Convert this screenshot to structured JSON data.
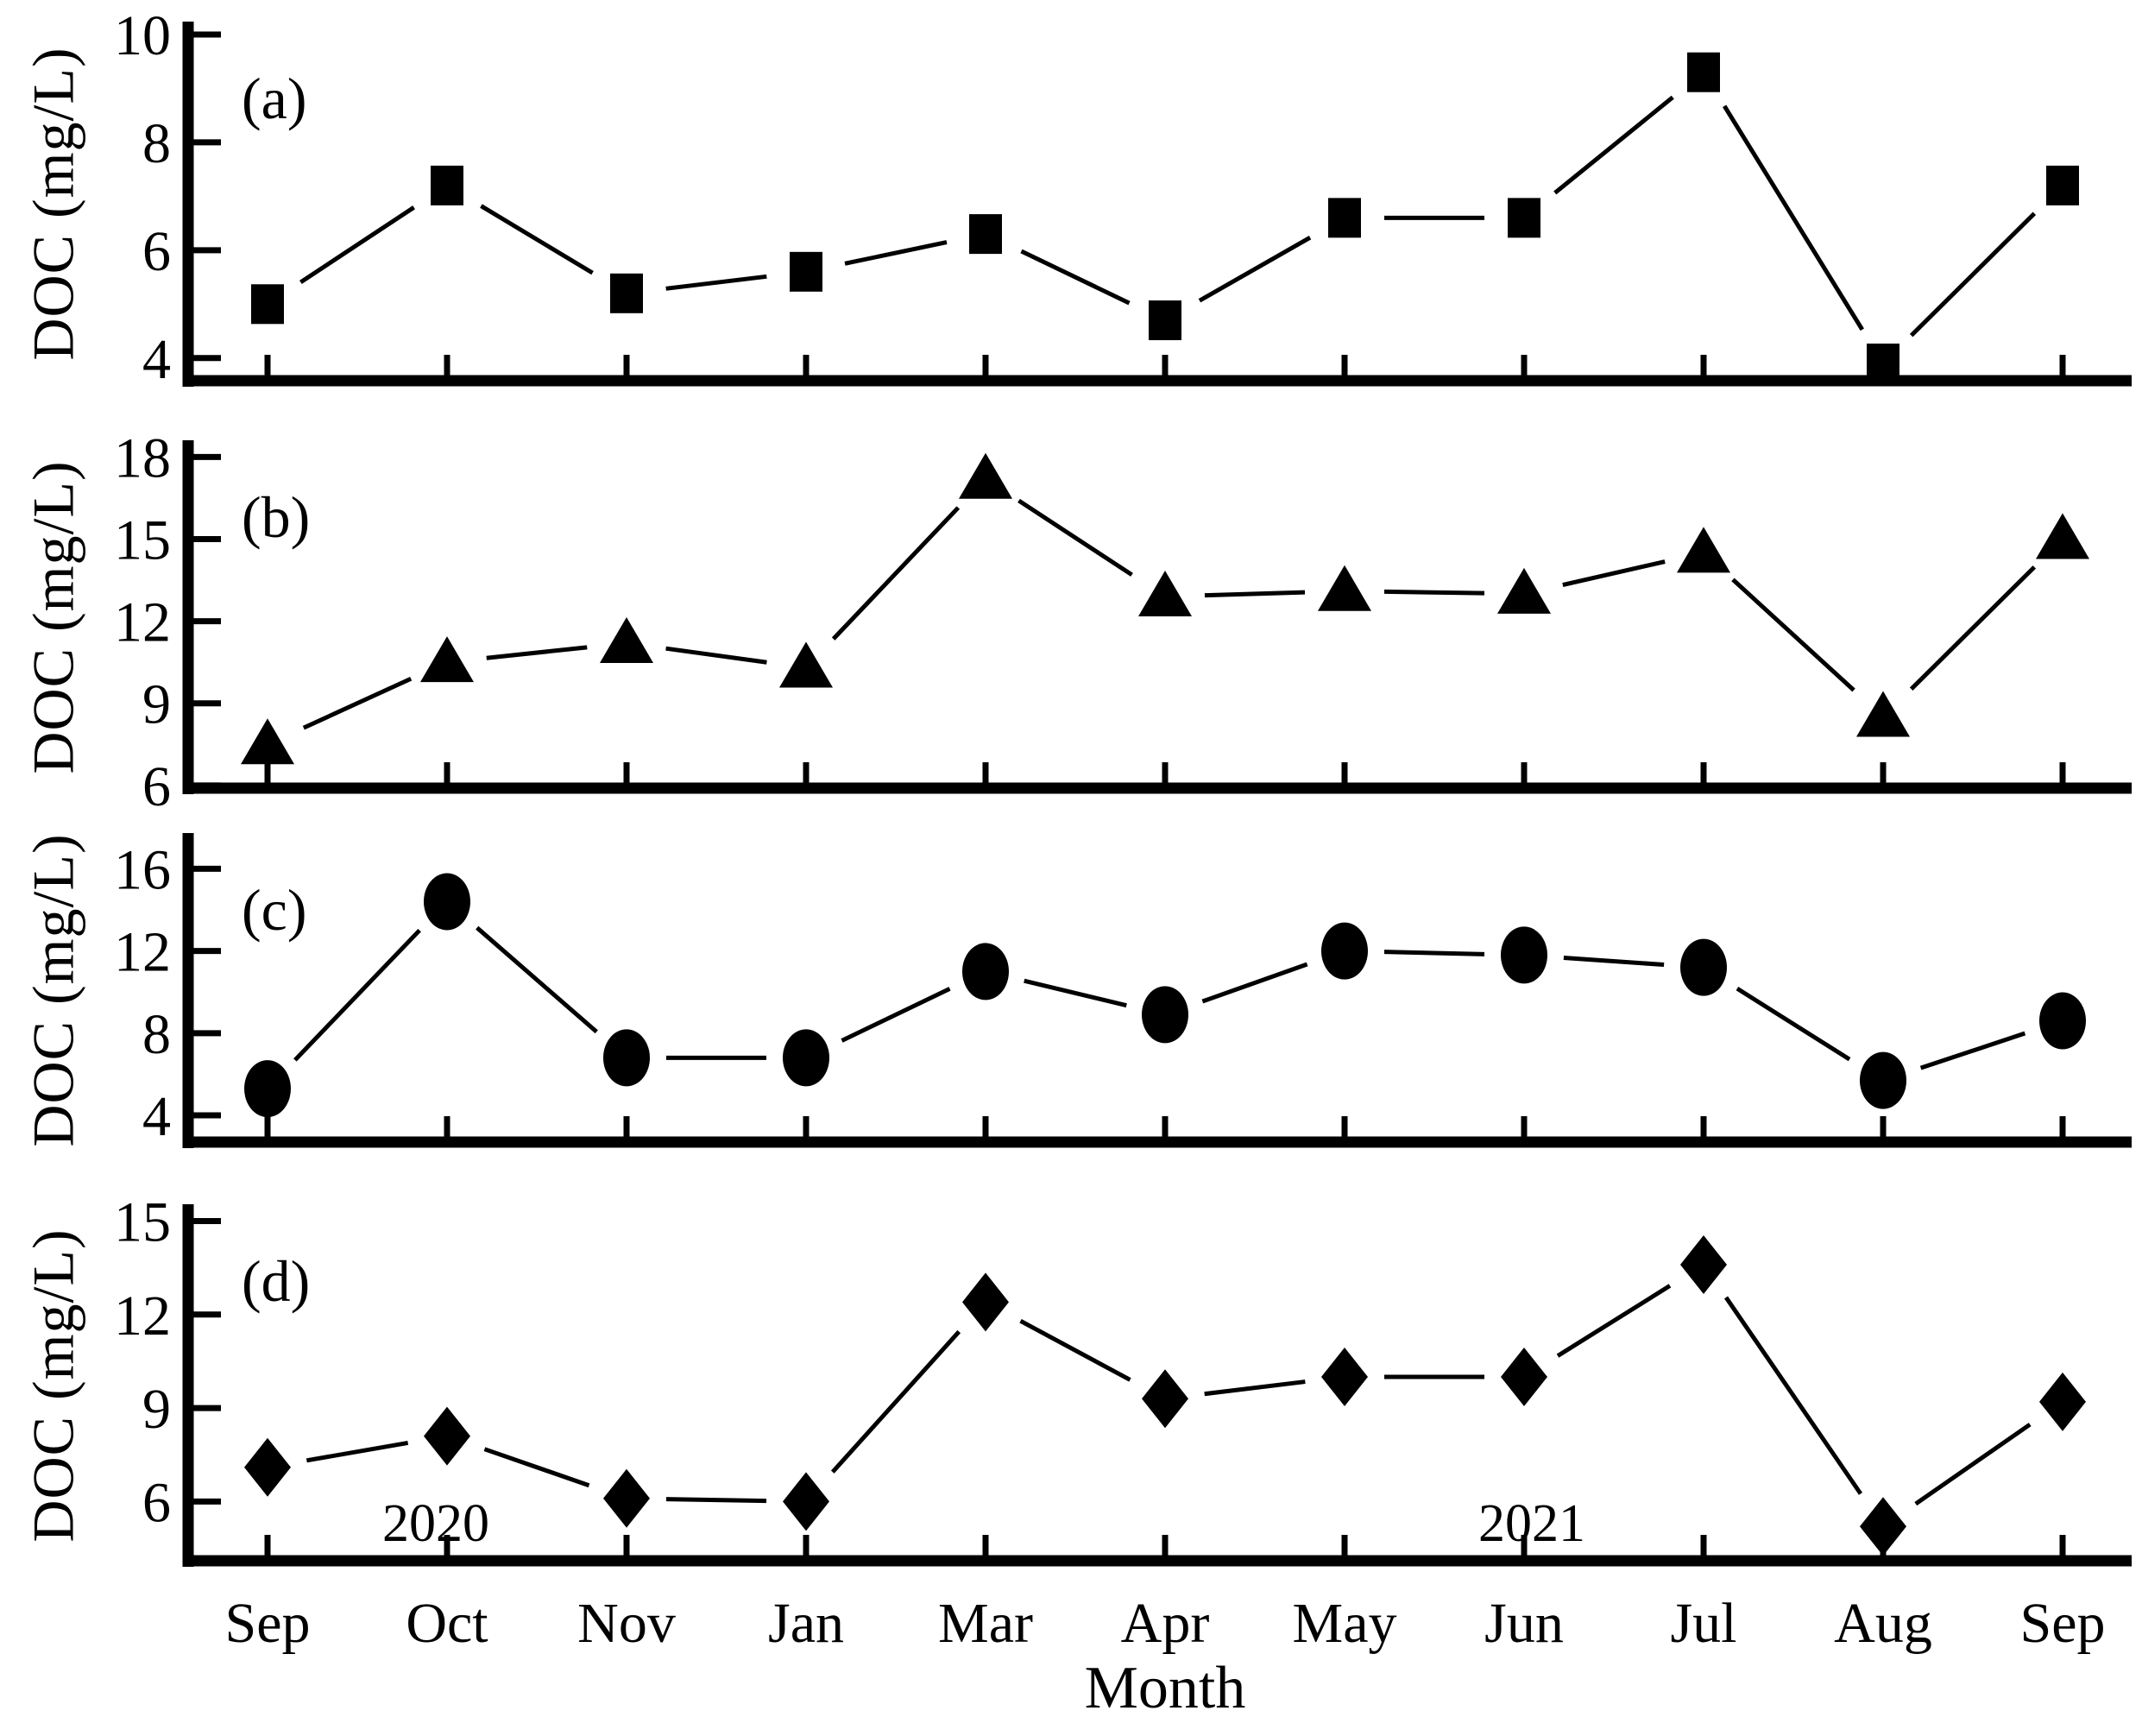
{
  "page": {
    "background": "#ffffff",
    "ink": "#000000"
  },
  "figure": {
    "xlabel": "Month",
    "months": [
      "Sep",
      "Oct",
      "Nov",
      "Jan",
      "Mar",
      "Apr",
      "May",
      "Jun",
      "Jul",
      "Aug",
      "Sep"
    ],
    "year_annotations": [
      {
        "text": "2020"
      },
      {
        "text": "2021"
      }
    ]
  },
  "chart_data": [
    {
      "type": "line",
      "panel_label": "(a)",
      "marker": "square",
      "ylabel": "DOC (mg/L)",
      "categories": [
        "Sep",
        "Oct",
        "Nov",
        "Jan",
        "Mar",
        "Apr",
        "May",
        "Jun",
        "Jul",
        "Aug",
        "Sep"
      ],
      "values": [
        5.0,
        7.2,
        5.2,
        5.6,
        6.3,
        4.7,
        6.6,
        6.6,
        9.3,
        3.9,
        7.2
      ],
      "yticks": [
        4,
        6,
        8,
        10
      ],
      "ylim": [
        3.58,
        10.24
      ],
      "grid": false,
      "legend": "none"
    },
    {
      "type": "line",
      "panel_label": "(b)",
      "marker": "triangle",
      "ylabel": "DOC (mg/L)",
      "categories": [
        "Sep",
        "Oct",
        "Nov",
        "Jan",
        "Mar",
        "Apr",
        "May",
        "Jun",
        "Jul",
        "Aug",
        "Sep"
      ],
      "values": [
        7.5,
        10.5,
        11.2,
        10.3,
        17.2,
        12.9,
        13.1,
        13.0,
        14.5,
        8.5,
        15.0
      ],
      "yticks": [
        6,
        9,
        12,
        15,
        18
      ],
      "ylim": [
        5.9,
        18.61
      ],
      "grid": false,
      "legend": "none"
    },
    {
      "type": "line",
      "panel_label": "(c)",
      "marker": "circle",
      "ylabel": "DOC (mg/L)",
      "categories": [
        "Sep",
        "Oct",
        "Nov",
        "Jan",
        "Mar",
        "Apr",
        "May",
        "Jun",
        "Jul",
        "Aug",
        "Sep"
      ],
      "values": [
        5.3,
        14.4,
        6.8,
        6.8,
        11.0,
        8.9,
        12.0,
        11.8,
        11.2,
        5.7,
        8.6
      ],
      "yticks": [
        4,
        8,
        12,
        16
      ],
      "ylim": [
        2.7,
        17.74
      ],
      "grid": false,
      "legend": "none"
    },
    {
      "type": "line",
      "panel_label": "(d)",
      "marker": "diamond",
      "ylabel": "DOC (mg/L)",
      "categories": [
        "Sep",
        "Oct",
        "Nov",
        "Jan",
        "Mar",
        "Apr",
        "May",
        "Jun",
        "Jul",
        "Aug",
        "Sep"
      ],
      "values": [
        7.1,
        8.1,
        6.1,
        6.0,
        12.4,
        9.3,
        10.0,
        10.0,
        13.6,
        5.2,
        9.2
      ],
      "yticks": [
        6,
        9,
        12,
        15
      ],
      "ylim": [
        4.1,
        15.54
      ],
      "grid": false,
      "legend": "none"
    }
  ]
}
